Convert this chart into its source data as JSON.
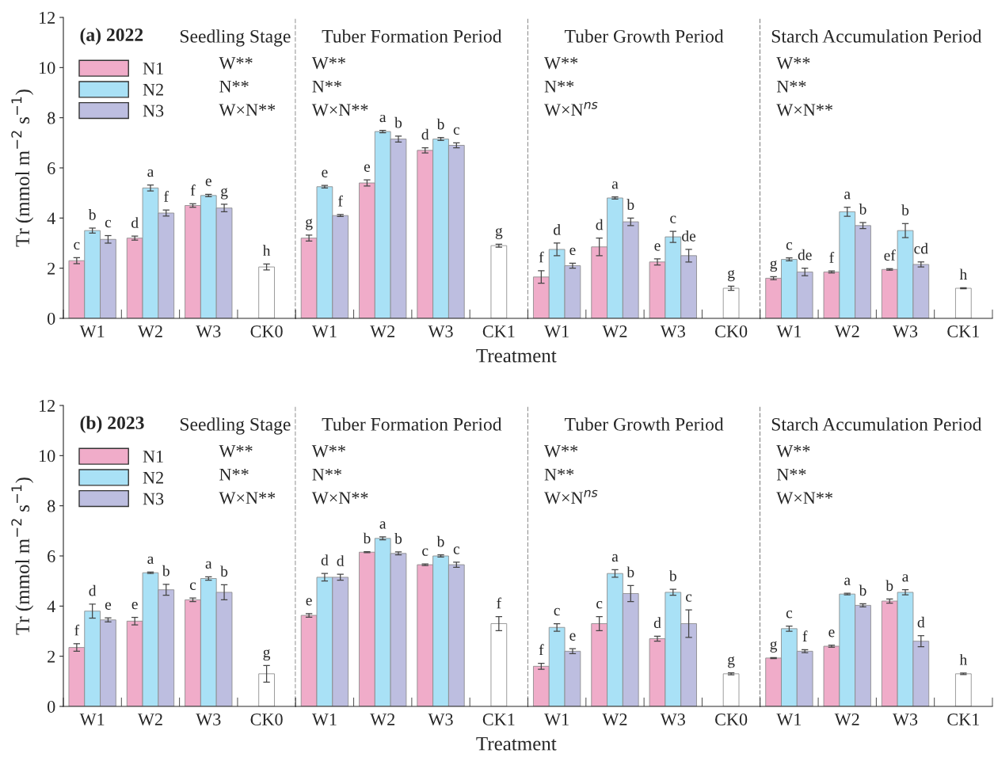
{
  "chart_data": [
    {
      "type": "bar",
      "title": "(a) 2022",
      "subtitle": "Seedling Stage",
      "ylabel": "Tr (mmol m$^{−2}$ s$^{−1}$)",
      "categories": [
        "W1",
        "W2",
        "W3",
        "CK0"
      ],
      "ylim": [
        0,
        12
      ],
      "yticks": [
        0,
        2,
        4,
        6,
        8,
        10,
        12
      ],
      "legend": "top left",
      "annotations": [
        "W**",
        "N**",
        "W×N**"
      ],
      "series": [
        {
          "name": "N1",
          "color": "#f0acc9",
          "values": [
            2.3,
            3.2,
            4.5,
            null
          ],
          "errors": [
            0.12,
            0.08,
            0.07,
            null
          ],
          "value_labels": [
            "c",
            "d",
            "f",
            null
          ]
        },
        {
          "name": "N2",
          "color": "#a9e1f6",
          "values": [
            3.5,
            5.2,
            4.9,
            null
          ],
          "errors": [
            0.1,
            0.12,
            0.05,
            null
          ],
          "value_labels": [
            "b",
            "a",
            "e",
            null
          ]
        },
        {
          "name": "N3",
          "color": "#bdbee0",
          "values": [
            3.15,
            4.2,
            4.4,
            null
          ],
          "errors": [
            0.15,
            0.12,
            0.15,
            null
          ],
          "value_labels": [
            "c",
            "f",
            "g",
            null
          ]
        },
        {
          "color": "#ffffff",
          "values": [
            null,
            null,
            null,
            2.05
          ],
          "errors": [
            null,
            null,
            null,
            0.12
          ],
          "value_labels": [
            null,
            null,
            null,
            "h"
          ]
        }
      ]
    },
    {
      "type": "bar",
      "title": "Tuber Formation Period",
      "xlabel": "Treatment",
      "categories": [
        "W1",
        "W2",
        "W3",
        "CK1"
      ],
      "ylim": [
        0,
        12
      ],
      "yticks": [
        0,
        2,
        4,
        6,
        8,
        10,
        12
      ],
      "tick_labels": "x",
      "annotations": [
        "W**",
        "N**",
        "W×N**"
      ],
      "series": [
        {
          "color": "#f0acc9",
          "values": [
            3.2,
            5.4,
            6.7,
            null
          ],
          "errors": [
            0.12,
            0.12,
            0.1,
            null
          ],
          "value_labels": [
            "g",
            "e",
            "d",
            null
          ]
        },
        {
          "color": "#a9e1f6",
          "values": [
            5.25,
            7.45,
            7.15,
            null
          ],
          "errors": [
            0.05,
            0.05,
            0.06,
            null
          ],
          "value_labels": [
            "e",
            "a",
            "b",
            null
          ]
        },
        {
          "color": "#bdbee0",
          "values": [
            4.1,
            7.15,
            6.9,
            null
          ],
          "errors": [
            0.04,
            0.12,
            0.1,
            null
          ],
          "value_labels": [
            "f",
            "b",
            "c",
            null
          ]
        },
        {
          "color": "#ffffff",
          "values": [
            null,
            null,
            null,
            2.9
          ],
          "errors": [
            null,
            null,
            null,
            0.06
          ],
          "value_labels": [
            null,
            null,
            null,
            "g"
          ]
        }
      ]
    },
    {
      "type": "bar",
      "title": "Tuber Growth Period",
      "categories": [
        "W1",
        "W2",
        "W3",
        "CK0"
      ],
      "ylim": [
        0,
        12
      ],
      "yticks": [
        0,
        2,
        4,
        6,
        8,
        10,
        12
      ],
      "tick_labels": "x",
      "annotations": [
        "W**",
        "N**",
        "W×N$^{ns}$"
      ],
      "series": [
        {
          "color": "#f0acc9",
          "values": [
            1.65,
            2.85,
            2.25,
            null
          ],
          "errors": [
            0.25,
            0.35,
            0.12,
            null
          ],
          "value_labels": [
            "f",
            "d",
            "e",
            null
          ]
        },
        {
          "color": "#a9e1f6",
          "values": [
            2.75,
            4.8,
            3.25,
            null
          ],
          "errors": [
            0.25,
            0.04,
            0.22,
            null
          ],
          "value_labels": [
            "d",
            "a",
            "c",
            null
          ]
        },
        {
          "color": "#bdbee0",
          "values": [
            2.1,
            3.85,
            2.5,
            null
          ],
          "errors": [
            0.1,
            0.15,
            0.25,
            null
          ],
          "value_labels": [
            "e",
            "b",
            "de",
            null
          ]
        },
        {
          "color": "#ffffff",
          "values": [
            null,
            null,
            null,
            1.2
          ],
          "errors": [
            null,
            null,
            null,
            0.08
          ],
          "value_labels": [
            null,
            null,
            null,
            "g"
          ]
        }
      ]
    },
    {
      "type": "bar",
      "title": "Starch Accumulation Period",
      "categories": [
        "W1",
        "W2",
        "W3",
        "CK1"
      ],
      "ylim": [
        0,
        12
      ],
      "yticks": [
        0,
        2,
        4,
        6,
        8,
        10,
        12
      ],
      "tick_labels": "x",
      "annotations": [
        "W**",
        "N**",
        "W×N**"
      ],
      "series": [
        {
          "color": "#f0acc9",
          "values": [
            1.6,
            1.85,
            1.95,
            null
          ],
          "errors": [
            0.06,
            0.04,
            0.03,
            null
          ],
          "value_labels": [
            "g",
            "f",
            "ef",
            null
          ]
        },
        {
          "color": "#a9e1f6",
          "values": [
            2.35,
            4.25,
            3.5,
            null
          ],
          "errors": [
            0.06,
            0.18,
            0.28,
            null
          ],
          "value_labels": [
            "c",
            "a",
            "b",
            null
          ]
        },
        {
          "color": "#bdbee0",
          "values": [
            1.85,
            3.7,
            2.15,
            null
          ],
          "errors": [
            0.15,
            0.12,
            0.1,
            null
          ],
          "value_labels": [
            "de",
            "b",
            "cd",
            null
          ]
        },
        {
          "color": "#ffffff",
          "values": [
            null,
            null,
            null,
            1.2
          ],
          "errors": [
            null,
            null,
            null,
            0.02
          ],
          "value_labels": [
            null,
            null,
            null,
            "h"
          ]
        }
      ]
    },
    {
      "type": "bar",
      "title": "(b) 2023",
      "subtitle": "Seedling Stage",
      "ylabel": "Tr (mmol m$^{−2}$ s$^{−1}$)",
      "categories": [
        "W1",
        "W2",
        "W3",
        "CK0"
      ],
      "ylim": [
        0,
        12
      ],
      "yticks": [
        0,
        2,
        4,
        6,
        8,
        10,
        12
      ],
      "legend": "top left",
      "annotations": [
        "W**",
        "N**",
        "W×N**"
      ],
      "series": [
        {
          "name": "N1",
          "color": "#f0acc9",
          "values": [
            2.35,
            3.4,
            4.25,
            null
          ],
          "errors": [
            0.15,
            0.15,
            0.07,
            null
          ],
          "value_labels": [
            "f",
            "e",
            "c",
            null
          ]
        },
        {
          "name": "N2",
          "color": "#a9e1f6",
          "values": [
            3.8,
            5.33,
            5.1,
            null
          ],
          "errors": [
            0.28,
            0.03,
            0.07,
            null
          ],
          "value_labels": [
            "d",
            "a",
            "a",
            null
          ]
        },
        {
          "name": "N3",
          "color": "#bdbee0",
          "values": [
            3.45,
            4.65,
            4.55,
            null
          ],
          "errors": [
            0.08,
            0.22,
            0.3,
            null
          ],
          "value_labels": [
            "e",
            "b",
            "b",
            null
          ]
        },
        {
          "color": "#ffffff",
          "values": [
            null,
            null,
            null,
            1.3
          ],
          "errors": [
            null,
            null,
            null,
            0.33
          ],
          "value_labels": [
            null,
            null,
            null,
            "g"
          ]
        }
      ]
    },
    {
      "type": "bar",
      "title": "Tuber Formation Period",
      "xlabel": "Treatment",
      "categories": [
        "W1",
        "W2",
        "W3",
        "CK1"
      ],
      "ylim": [
        0,
        12
      ],
      "yticks": [
        0,
        2,
        4,
        6,
        8,
        10,
        12
      ],
      "tick_labels": "x",
      "annotations": [
        "W**",
        "N**",
        "W×N**"
      ],
      "series": [
        {
          "color": "#f0acc9",
          "values": [
            3.63,
            6.15,
            5.65,
            null
          ],
          "errors": [
            0.07,
            0.02,
            0.03,
            null
          ],
          "value_labels": [
            "e",
            "b",
            "c",
            null
          ]
        },
        {
          "color": "#a9e1f6",
          "values": [
            5.15,
            6.7,
            6.0,
            null
          ],
          "errors": [
            0.15,
            0.06,
            0.04,
            null
          ],
          "value_labels": [
            "d",
            "a",
            "b",
            null
          ]
        },
        {
          "color": "#bdbee0",
          "values": [
            5.15,
            6.1,
            5.65,
            null
          ],
          "errors": [
            0.12,
            0.06,
            0.1,
            null
          ],
          "value_labels": [
            "d",
            "b",
            "c",
            null
          ]
        },
        {
          "color": "#ffffff",
          "values": [
            null,
            null,
            null,
            3.3
          ],
          "errors": [
            null,
            null,
            null,
            0.28
          ],
          "value_labels": [
            null,
            null,
            null,
            "f"
          ]
        }
      ]
    },
    {
      "type": "bar",
      "title": "Tuber Growth Period",
      "categories": [
        "W1",
        "W2",
        "W3",
        "CK0"
      ],
      "ylim": [
        0,
        12
      ],
      "yticks": [
        0,
        2,
        4,
        6,
        8,
        10,
        12
      ],
      "tick_labels": "x",
      "annotations": [
        "W**",
        "N**",
        "W×N$^{ns}$"
      ],
      "series": [
        {
          "color": "#f0acc9",
          "values": [
            1.6,
            3.3,
            2.7,
            null
          ],
          "errors": [
            0.12,
            0.28,
            0.1,
            null
          ],
          "value_labels": [
            "f",
            "c",
            "d",
            null
          ]
        },
        {
          "color": "#a9e1f6",
          "values": [
            3.15,
            5.3,
            4.55,
            null
          ],
          "errors": [
            0.15,
            0.15,
            0.12,
            null
          ],
          "value_labels": [
            "c",
            "a",
            "b",
            null
          ]
        },
        {
          "color": "#bdbee0",
          "values": [
            2.2,
            4.5,
            3.3,
            null
          ],
          "errors": [
            0.1,
            0.32,
            0.55,
            null
          ],
          "value_labels": [
            "e",
            "b",
            "c",
            null
          ]
        },
        {
          "color": "#ffffff",
          "values": [
            null,
            null,
            null,
            1.3
          ],
          "errors": [
            null,
            null,
            null,
            0.04
          ],
          "value_labels": [
            null,
            null,
            null,
            "g"
          ]
        }
      ]
    },
    {
      "type": "bar",
      "title": "Starch Accumulation Period",
      "categories": [
        "W1",
        "W2",
        "W3",
        "CK1"
      ],
      "ylim": [
        0,
        12
      ],
      "yticks": [
        0,
        2,
        4,
        6,
        8,
        10,
        12
      ],
      "tick_labels": "x",
      "annotations": [
        "W**",
        "N**",
        "W×N**"
      ],
      "series": [
        {
          "color": "#f0acc9",
          "values": [
            1.93,
            2.4,
            4.2,
            null
          ],
          "errors": [
            0.02,
            0.04,
            0.08,
            null
          ],
          "value_labels": [
            "g",
            "e",
            "b",
            null
          ]
        },
        {
          "color": "#a9e1f6",
          "values": [
            3.1,
            4.48,
            4.55,
            null
          ],
          "errors": [
            0.1,
            0.03,
            0.1,
            null
          ],
          "value_labels": [
            "c",
            "a",
            "a",
            null
          ]
        },
        {
          "color": "#bdbee0",
          "values": [
            2.2,
            4.03,
            2.6,
            null
          ],
          "errors": [
            0.06,
            0.06,
            0.22,
            null
          ],
          "value_labels": [
            "f",
            "b",
            "d",
            null
          ]
        },
        {
          "color": "#ffffff",
          "values": [
            null,
            null,
            null,
            1.3
          ],
          "errors": [
            null,
            null,
            null,
            0.03
          ],
          "value_labels": [
            null,
            null,
            null,
            "h"
          ]
        }
      ]
    }
  ]
}
